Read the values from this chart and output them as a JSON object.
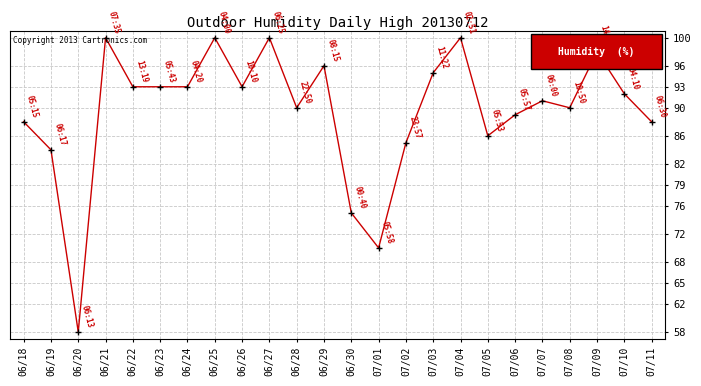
{
  "title": "Outdoor Humidity Daily High 20130712",
  "background_color": "#ffffff",
  "grid_color": "#c8c8c8",
  "line_color": "#cc0000",
  "marker_color": "#000000",
  "label_color": "#cc0000",
  "ylim": [
    57,
    101
  ],
  "yticks": [
    58,
    62,
    65,
    68,
    72,
    76,
    79,
    82,
    86,
    90,
    93,
    96,
    100
  ],
  "copyright_text": "Copyright 2013 Cartronics.com",
  "legend_label": "Humidity  (%)",
  "legend_bg": "#cc0000",
  "legend_fg": "#ffffff",
  "dates": [
    "06/18",
    "06/19",
    "06/20",
    "06/21",
    "06/22",
    "06/23",
    "06/24",
    "06/25",
    "06/26",
    "06/27",
    "06/28",
    "06/29",
    "06/30",
    "07/01",
    "07/02",
    "07/03",
    "07/04",
    "07/05",
    "07/06",
    "07/07",
    "07/08",
    "07/09",
    "07/10",
    "07/11"
  ],
  "values": [
    88,
    84,
    58,
    100,
    93,
    93,
    93,
    100,
    93,
    100,
    90,
    96,
    75,
    70,
    85,
    95,
    100,
    86,
    89,
    91,
    90,
    98,
    92,
    88
  ],
  "time_labels": [
    "05:15",
    "06:17",
    "06:13",
    "07:35",
    "13:19",
    "05:43",
    "04:20",
    "04:00",
    "10:10",
    "06:25",
    "22:50",
    "08:15",
    "00:40",
    "05:58",
    "23:57",
    "11:22",
    "02:51",
    "05:53",
    "05:57",
    "06:00",
    "10:50",
    "14:55",
    "04:10",
    "06:30"
  ],
  "title_fontsize": 10,
  "axis_fontsize": 7,
  "label_fontsize": 5.5,
  "ytick_fontsize": 7.5
}
